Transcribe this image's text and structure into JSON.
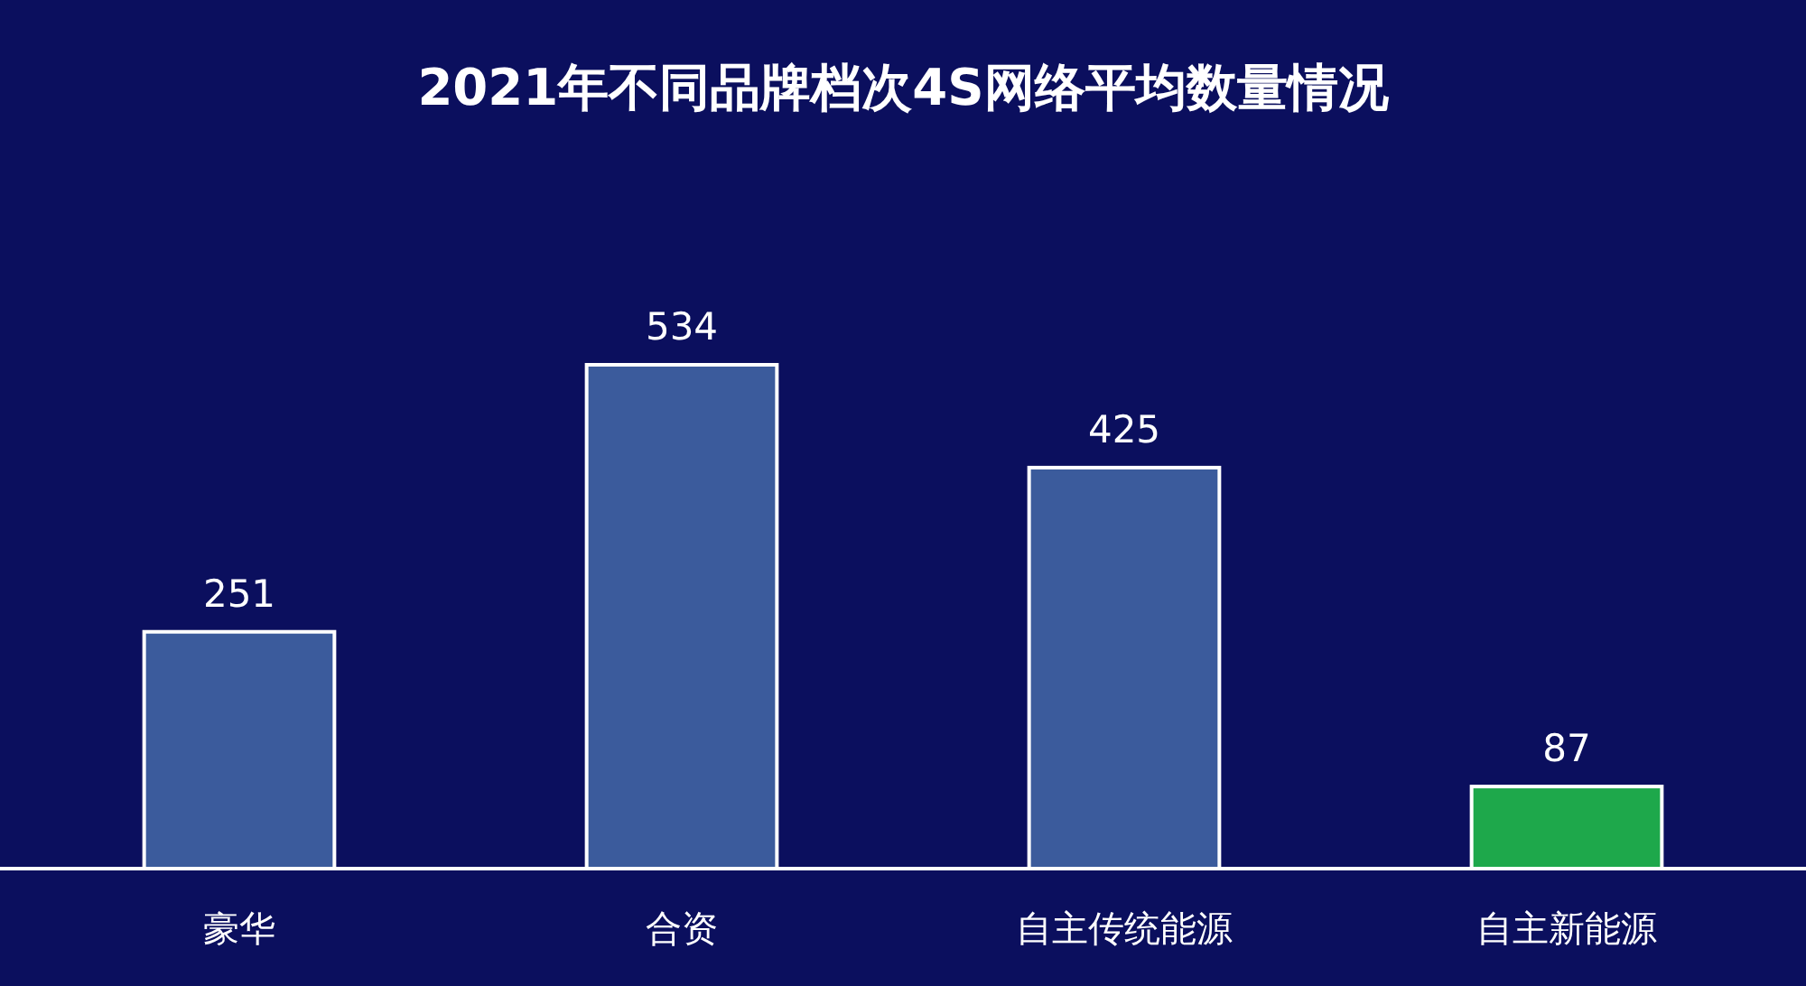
{
  "chart_data": {
    "type": "bar",
    "title": "2021年不同品牌档次4S网络平均数量情况",
    "categories": [
      "豪华",
      "合资",
      "自主传统能源",
      "自主新能源"
    ],
    "values": [
      251,
      534,
      425,
      87
    ],
    "colors": [
      "#3b5b9c",
      "#3b5b9c",
      "#3b5b9c",
      "#1ea84b"
    ],
    "data_labels": true
  }
}
